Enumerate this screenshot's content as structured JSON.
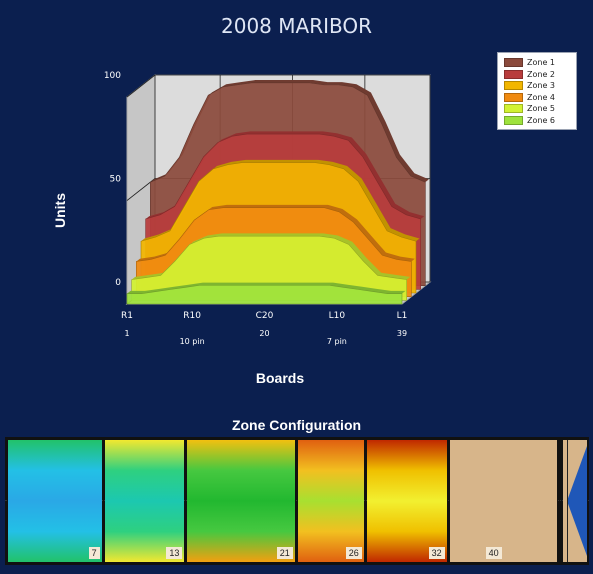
{
  "title": "2008 MARIBOR",
  "chart_data": {
    "type": "area",
    "title": "2008 MARIBOR",
    "xlabel": "Boards",
    "ylabel": "Units",
    "ylim": [
      0,
      100
    ],
    "yticks": [
      "0",
      "50",
      "100"
    ],
    "grid": true,
    "legend_position": "top-right",
    "x": [
      1,
      3,
      5,
      7,
      9,
      11,
      13,
      15,
      17,
      19,
      21,
      23,
      25,
      27,
      29,
      31,
      33,
      35,
      37,
      39
    ],
    "x_tick_labels": [
      {
        "board": 1,
        "label": "R1",
        "sub": "1"
      },
      {
        "board": 10,
        "label": "R10",
        "sub": "10 pin"
      },
      {
        "board": 20,
        "label": "C20",
        "sub": "20"
      },
      {
        "board": 30,
        "label": "L10",
        "sub": "7 pin"
      },
      {
        "board": 39,
        "label": "L1",
        "sub": "39"
      }
    ],
    "series": [
      {
        "name": "Zone 1",
        "color": "#8b4a3c",
        "values": [
          50,
          53,
          62,
          78,
          92,
          96,
          97,
          98,
          98,
          98,
          98,
          98,
          97,
          97,
          96,
          92,
          78,
          62,
          53,
          50
        ]
      },
      {
        "name": "Zone 2",
        "color": "#b83c3c",
        "values": [
          34,
          36,
          40,
          52,
          64,
          71,
          74,
          75,
          75,
          75,
          75,
          75,
          75,
          74,
          72,
          64,
          52,
          40,
          36,
          34
        ]
      },
      {
        "name": "Zone 3",
        "color": "#f2b600",
        "values": [
          25,
          27,
          30,
          42,
          54,
          60,
          62,
          63,
          63,
          63,
          63,
          63,
          63,
          62,
          60,
          54,
          42,
          30,
          27,
          25
        ]
      },
      {
        "name": "Zone 4",
        "color": "#f08a10",
        "values": [
          17,
          18,
          20,
          28,
          37,
          42,
          43,
          43,
          43,
          43,
          43,
          43,
          43,
          43,
          41,
          36,
          28,
          20,
          18,
          17
        ]
      },
      {
        "name": "Zone 5",
        "color": "#d2f232",
        "values": [
          10,
          11,
          12,
          19,
          27,
          30,
          31,
          31,
          31,
          31,
          31,
          31,
          31,
          31,
          30,
          27,
          19,
          12,
          11,
          10
        ]
      },
      {
        "name": "Zone 6",
        "color": "#9ee23c",
        "values": [
          5,
          5,
          6,
          7,
          8,
          9,
          9,
          9,
          9,
          9,
          9,
          9,
          9,
          9,
          9,
          8,
          7,
          6,
          5,
          5
        ]
      }
    ]
  },
  "zone_config": {
    "title": "Zone Configuration",
    "zones": [
      {
        "end": "7",
        "gradient": [
          "#22c26a",
          "#23c0e6",
          "#2aa8e6",
          "#23c0e6",
          "#22c26a"
        ]
      },
      {
        "end": "13",
        "gradient": [
          "#f2e830",
          "#2ed080",
          "#1cc8b0",
          "#2ed080",
          "#f2e830"
        ]
      },
      {
        "end": "21",
        "gradient": [
          "#f2c010",
          "#46c840",
          "#22b830",
          "#46c840",
          "#f2a010"
        ]
      },
      {
        "end": "26",
        "gradient": [
          "#e06010",
          "#f2c020",
          "#a8e030",
          "#f2c020",
          "#e06010"
        ]
      },
      {
        "end": "32",
        "gradient": [
          "#c02800",
          "#f0c000",
          "#f2f030",
          "#f0c000",
          "#c02800"
        ]
      },
      {
        "end": "40",
        "gradient": [
          "#d7b58a",
          "#d7b58a"
        ]
      }
    ]
  }
}
